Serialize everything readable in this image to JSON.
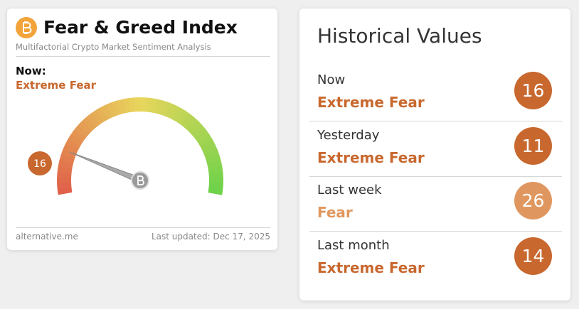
{
  "widget": {
    "title": "Fear & Greed Index",
    "subtitle": "Multifactorial Crypto Market Sentiment Analysis",
    "now_label": "Now:",
    "now_class": "Extreme Fear",
    "value": 16,
    "gauge_min": 0,
    "gauge_max": 100,
    "source": "alternative.me",
    "updated": "Last updated: Dec 17, 2025",
    "color": "#c8682f"
  },
  "historical": {
    "title": "Historical Values",
    "rows": [
      {
        "label": "Now",
        "class": "Extreme Fear",
        "value": 16,
        "color": "#c8682f"
      },
      {
        "label": "Yesterday",
        "class": "Extreme Fear",
        "value": 11,
        "color": "#c8682f"
      },
      {
        "label": "Last week",
        "class": "Fear",
        "value": 26,
        "color": "#e0975f"
      },
      {
        "label": "Last month",
        "class": "Extreme Fear",
        "value": 14,
        "color": "#c8682f"
      }
    ]
  }
}
